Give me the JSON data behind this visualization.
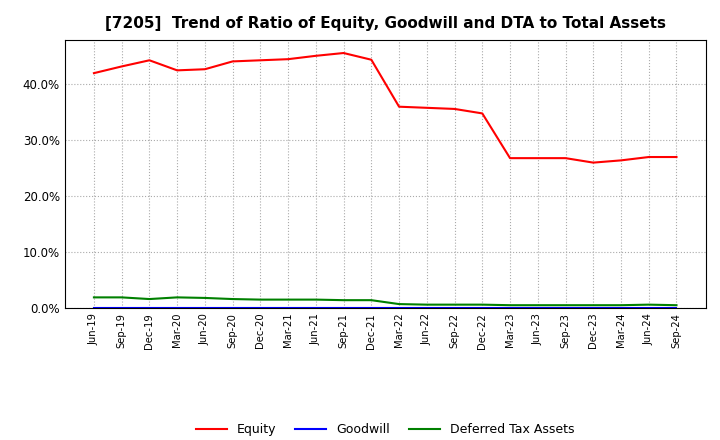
{
  "title": "[7205]  Trend of Ratio of Equity, Goodwill and DTA to Total Assets",
  "x_labels": [
    "Jun-19",
    "Sep-19",
    "Dec-19",
    "Mar-20",
    "Jun-20",
    "Sep-20",
    "Dec-20",
    "Mar-21",
    "Jun-21",
    "Sep-21",
    "Dec-21",
    "Mar-22",
    "Jun-22",
    "Sep-22",
    "Dec-22",
    "Mar-23",
    "Jun-23",
    "Sep-23",
    "Dec-23",
    "Mar-24",
    "Jun-24",
    "Sep-24"
  ],
  "equity": [
    0.42,
    0.432,
    0.443,
    0.425,
    0.427,
    0.441,
    0.443,
    0.445,
    0.451,
    0.456,
    0.444,
    0.36,
    0.358,
    0.356,
    0.348,
    0.268,
    0.268,
    0.268,
    0.26,
    0.264,
    0.27,
    0.27
  ],
  "goodwill": [
    0.0,
    0.0,
    0.0,
    0.0,
    0.0,
    0.0,
    0.0,
    0.0,
    0.0,
    0.0,
    0.0,
    0.0,
    0.0,
    0.0,
    0.0,
    0.0,
    0.0,
    0.0,
    0.0,
    0.0,
    0.0,
    0.0
  ],
  "dta": [
    0.019,
    0.019,
    0.016,
    0.019,
    0.018,
    0.016,
    0.015,
    0.015,
    0.015,
    0.014,
    0.014,
    0.007,
    0.006,
    0.006,
    0.006,
    0.005,
    0.005,
    0.005,
    0.005,
    0.005,
    0.006,
    0.005
  ],
  "equity_color": "#ff0000",
  "goodwill_color": "#0000ff",
  "dta_color": "#008000",
  "background_color": "#ffffff",
  "plot_bg_color": "#ffffff",
  "grid_color": "#aaaaaa",
  "title_fontsize": 11,
  "ylim": [
    0.0,
    0.48
  ],
  "yticks": [
    0.0,
    0.1,
    0.2,
    0.3,
    0.4
  ],
  "legend_labels": [
    "Equity",
    "Goodwill",
    "Deferred Tax Assets"
  ]
}
